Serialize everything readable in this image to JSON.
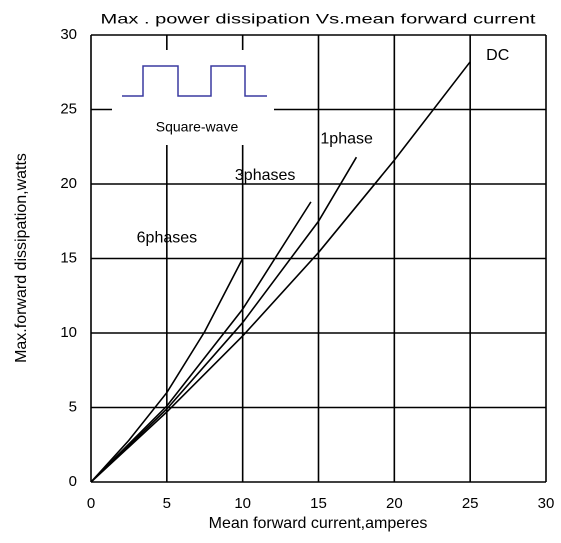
{
  "chart_data": {
    "type": "line",
    "title": "Max . power dissipation Vs.mean forward current",
    "x_label": "Mean forward current,amperes",
    "y_label": "Max.forward dissipation,watts",
    "inset_label": "Square-wave",
    "xlim": [
      0,
      30
    ],
    "xticks": [
      0,
      5,
      10,
      15,
      20,
      25,
      30
    ],
    "ylim": [
      0,
      30
    ],
    "yticks": [
      0,
      5,
      10,
      15,
      20,
      25,
      30
    ],
    "grid": true,
    "series": [
      {
        "name": "DC",
        "color": "#000000",
        "x": [
          0,
          5,
          10,
          15,
          20,
          25
        ],
        "values": [
          0,
          4.7,
          9.8,
          15.4,
          21.6,
          28.2
        ]
      },
      {
        "name": "1phase",
        "color": "#000000",
        "x": [
          0,
          5,
          10,
          15,
          17.5
        ],
        "values": [
          0,
          4.9,
          10.7,
          17.5,
          21.8
        ]
      },
      {
        "name": "3phases",
        "color": "#000000",
        "x": [
          0,
          5,
          10,
          14.5
        ],
        "values": [
          0,
          5.1,
          11.6,
          18.8
        ]
      },
      {
        "name": "6phases",
        "color": "#000000",
        "x": [
          0,
          2.5,
          5,
          7.5,
          10
        ],
        "values": [
          0,
          2.8,
          6.0,
          10.1,
          15.0
        ]
      }
    ]
  }
}
